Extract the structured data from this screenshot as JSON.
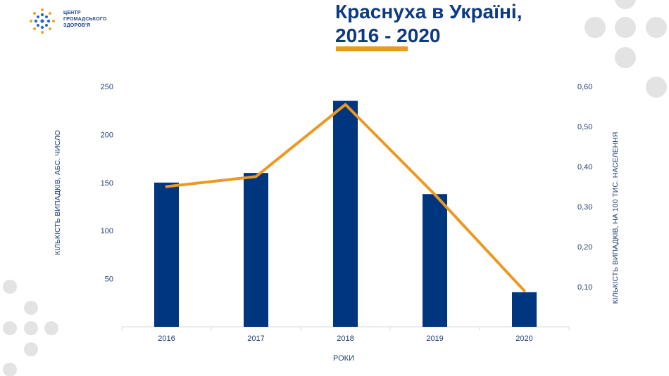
{
  "header": {
    "org_name_lines": [
      "ЦЕНТР",
      "ГРОМАДСЬКОГО",
      "ЗДОРОВ'Я"
    ],
    "title_lines": [
      "Краснуха в Україні,",
      "2016 - 2020"
    ],
    "title_color": "#0e3a82",
    "accent_color": "#ec9922"
  },
  "chart_data": {
    "type": "bar",
    "xlabel": "РОКИ",
    "ylabel_left": "КІЛЬКІСТЬ ВИПАДКІВ, АБС. ЧИСЛО",
    "ylabel_right": "КІЛЬКІСТЬ ВИПАДКІВ, НА 100 ТИС. НАСЕЛЕННЯ",
    "categories": [
      "2016",
      "2017",
      "2018",
      "2019",
      "2020"
    ],
    "bar_series": {
      "values": [
        150,
        160,
        235,
        138,
        36
      ],
      "color": "#003580"
    },
    "line_series": {
      "values": [
        0.35,
        0.375,
        0.555,
        0.33,
        0.09
      ],
      "color": "#ec9922"
    },
    "ylim_left": [
      0,
      250
    ],
    "yticks_left": [
      "50",
      "100",
      "150",
      "200",
      "250"
    ],
    "ylim_right": [
      0,
      0.6
    ],
    "yticks_right": [
      "0,10",
      "0,20",
      "0,30",
      "0,40",
      "0,50",
      "0,60"
    ],
    "grid": false,
    "legend": "none"
  }
}
